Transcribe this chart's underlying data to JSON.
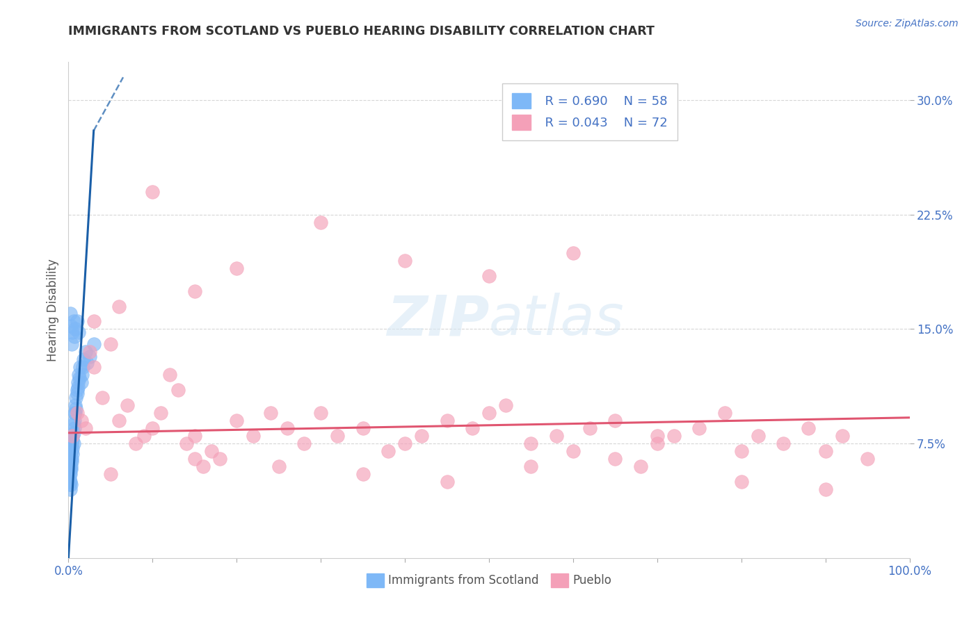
{
  "title": "IMMIGRANTS FROM SCOTLAND VS PUEBLO HEARING DISABILITY CORRELATION CHART",
  "source": "Source: ZipAtlas.com",
  "ylabel": "Hearing Disability",
  "xlim": [
    0.0,
    1.0
  ],
  "ylim": [
    0.0,
    0.325
  ],
  "xticks": [
    0.0,
    0.1,
    0.2,
    0.3,
    0.4,
    0.5,
    0.6,
    0.7,
    0.8,
    0.9,
    1.0
  ],
  "xticklabels": [
    "0.0%",
    "",
    "",
    "",
    "",
    "",
    "",
    "",
    "",
    "",
    "100.0%"
  ],
  "yticks": [
    0.075,
    0.15,
    0.225,
    0.3
  ],
  "yticklabels": [
    "7.5%",
    "15.0%",
    "22.5%",
    "30.0%"
  ],
  "series1_color": "#7eb8f7",
  "series2_color": "#f4a0b8",
  "trend1_color": "#1a5fa8",
  "trend2_color": "#e05570",
  "title_color": "#333333",
  "legend_text_color": "#4472c4",
  "background_color": "#ffffff",
  "grid_color": "#cccccc",
  "scatter1_x": [
    0.001,
    0.001,
    0.001,
    0.001,
    0.001,
    0.002,
    0.002,
    0.002,
    0.002,
    0.002,
    0.002,
    0.003,
    0.003,
    0.003,
    0.003,
    0.003,
    0.004,
    0.004,
    0.004,
    0.004,
    0.005,
    0.005,
    0.005,
    0.005,
    0.006,
    0.006,
    0.006,
    0.007,
    0.007,
    0.007,
    0.008,
    0.008,
    0.009,
    0.009,
    0.01,
    0.01,
    0.011,
    0.011,
    0.012,
    0.013,
    0.014,
    0.015,
    0.016,
    0.017,
    0.018,
    0.02,
    0.022,
    0.025,
    0.03,
    0.002,
    0.003,
    0.004,
    0.005,
    0.006,
    0.007,
    0.008,
    0.01,
    0.012
  ],
  "scatter1_y": [
    0.05,
    0.055,
    0.06,
    0.048,
    0.052,
    0.058,
    0.062,
    0.055,
    0.068,
    0.05,
    0.045,
    0.065,
    0.058,
    0.072,
    0.048,
    0.06,
    0.07,
    0.075,
    0.063,
    0.065,
    0.08,
    0.072,
    0.068,
    0.078,
    0.082,
    0.088,
    0.075,
    0.09,
    0.085,
    0.095,
    0.095,
    0.1,
    0.105,
    0.098,
    0.11,
    0.108,
    0.115,
    0.112,
    0.12,
    0.118,
    0.125,
    0.115,
    0.12,
    0.125,
    0.13,
    0.135,
    0.128,
    0.132,
    0.14,
    0.16,
    0.152,
    0.14,
    0.148,
    0.155,
    0.145,
    0.15,
    0.155,
    0.148
  ],
  "scatter2_x": [
    0.005,
    0.01,
    0.015,
    0.02,
    0.025,
    0.03,
    0.04,
    0.05,
    0.06,
    0.07,
    0.08,
    0.09,
    0.1,
    0.11,
    0.12,
    0.13,
    0.14,
    0.15,
    0.16,
    0.17,
    0.18,
    0.2,
    0.22,
    0.24,
    0.26,
    0.28,
    0.3,
    0.32,
    0.35,
    0.38,
    0.4,
    0.42,
    0.45,
    0.48,
    0.5,
    0.52,
    0.55,
    0.58,
    0.6,
    0.62,
    0.65,
    0.68,
    0.7,
    0.72,
    0.75,
    0.78,
    0.8,
    0.82,
    0.85,
    0.88,
    0.9,
    0.92,
    0.95,
    0.03,
    0.06,
    0.1,
    0.15,
    0.2,
    0.3,
    0.4,
    0.5,
    0.6,
    0.7,
    0.8,
    0.9,
    0.05,
    0.15,
    0.25,
    0.35,
    0.45,
    0.55,
    0.65
  ],
  "scatter2_y": [
    0.08,
    0.095,
    0.09,
    0.085,
    0.135,
    0.125,
    0.105,
    0.14,
    0.09,
    0.1,
    0.075,
    0.08,
    0.085,
    0.095,
    0.12,
    0.11,
    0.075,
    0.08,
    0.06,
    0.07,
    0.065,
    0.09,
    0.08,
    0.095,
    0.085,
    0.075,
    0.095,
    0.08,
    0.085,
    0.07,
    0.075,
    0.08,
    0.09,
    0.085,
    0.095,
    0.1,
    0.075,
    0.08,
    0.07,
    0.085,
    0.09,
    0.06,
    0.075,
    0.08,
    0.085,
    0.095,
    0.07,
    0.08,
    0.075,
    0.085,
    0.07,
    0.08,
    0.065,
    0.155,
    0.165,
    0.24,
    0.175,
    0.19,
    0.22,
    0.195,
    0.185,
    0.2,
    0.08,
    0.05,
    0.045,
    0.055,
    0.065,
    0.06,
    0.055,
    0.05,
    0.06,
    0.065
  ],
  "trend1_x0": 0.0,
  "trend1_y0": 0.0,
  "trend1_x1": 0.03,
  "trend1_y1": 0.28,
  "trend1_dash_x0": 0.03,
  "trend1_dash_y0": 0.28,
  "trend1_dash_x1": 0.065,
  "trend1_dash_y1": 0.315,
  "trend2_y_at_0": 0.082,
  "trend2_y_at_1": 0.092
}
